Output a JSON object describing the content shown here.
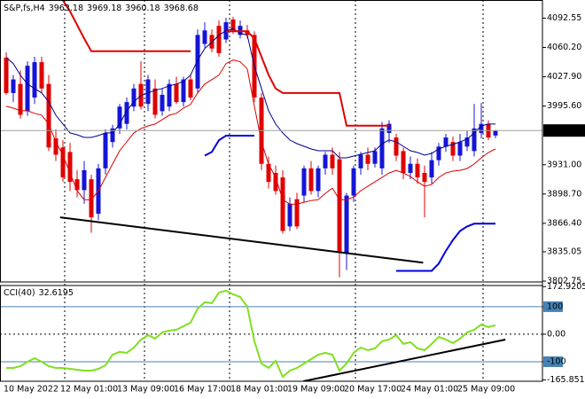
{
  "chart_data": [
    {
      "type": "candlestick",
      "title": "S&P,fs,H4",
      "categories": [
        "10 May 2022",
        null,
        null,
        null,
        null,
        null,
        null,
        null,
        "12 May 01:00",
        null,
        null,
        null,
        null,
        null,
        null,
        null,
        "13 May 09:00",
        null,
        null,
        null,
        null,
        null,
        null,
        null,
        "16 May 17:00",
        null,
        null,
        null,
        null,
        null,
        null,
        null,
        "18 May 01:00",
        null,
        null,
        null,
        null,
        null,
        null,
        null,
        "19 May 09:00",
        null,
        null,
        null,
        null,
        null,
        null,
        null,
        "20 May 17:00",
        null,
        null,
        null,
        null,
        null,
        null,
        null,
        "24 May 01:00",
        null,
        null,
        null,
        null,
        null,
        null,
        null,
        "25 May 09:00",
        null,
        null,
        null,
        null,
        null
      ],
      "open": [
        4049,
        4010,
        4020,
        3990,
        4005,
        4044,
        4020,
        3960,
        3950,
        3945,
        3915,
        3903,
        3915,
        3877,
        3927,
        3956,
        3971,
        3976,
        3995,
        4020,
        3998,
        4015,
        3990,
        3995,
        4020,
        4000,
        4025,
        4015,
        4064,
        4074,
        4084,
        4069,
        4091,
        4074,
        4079,
        4074,
        4005,
        3932,
        3922,
        3917,
        3863,
        3893,
        3897,
        3927,
        3902,
        3927,
        3942,
        3937,
        3834,
        3897,
        3927,
        3942,
        3932,
        3927,
        3966,
        3961,
        3946,
        3922,
        3932,
        3922,
        3917,
        3936,
        3951,
        3956,
        3941,
        3951,
        3946,
        3966,
        3976,
        3963.18
      ],
      "high": [
        4055,
        4030,
        4035,
        4045,
        4050,
        4050,
        4030,
        3970,
        3958,
        3955,
        3925,
        3935,
        3920,
        3932,
        3970,
        3975,
        3998,
        4005,
        4020,
        4045,
        4030,
        4025,
        4015,
        4025,
        4028,
        4028,
        4030,
        4080,
        4088,
        4080,
        4090,
        4093,
        4094,
        4090,
        4085,
        4078,
        4010,
        3940,
        3930,
        3925,
        3895,
        3900,
        3930,
        3935,
        3930,
        3945,
        3950,
        3945,
        3900,
        3930,
        3945,
        3950,
        3950,
        3978,
        3980,
        3965,
        3950,
        3940,
        3938,
        3930,
        3945,
        3955,
        3965,
        3962,
        3965,
        3968,
        3998,
        3999,
        3980,
        3969.18
      ],
      "low": [
        4008,
        4000,
        3982,
        3985,
        3998,
        4010,
        3946,
        3935,
        3912,
        3902,
        3895,
        3888,
        3856,
        3870,
        3920,
        3950,
        3965,
        3970,
        3990,
        3992,
        3990,
        3982,
        3985,
        3990,
        3998,
        3995,
        4002,
        4010,
        4060,
        4055,
        4050,
        4065,
        4075,
        4070,
        4070,
        4000,
        3925,
        3905,
        3898,
        3855,
        3858,
        3860,
        3890,
        3898,
        3895,
        3920,
        3920,
        3807,
        3815,
        3890,
        3920,
        3925,
        3928,
        3920,
        3955,
        3935,
        3915,
        3915,
        3910,
        3873,
        3910,
        3930,
        3945,
        3935,
        3935,
        3946,
        3940,
        3960,
        3958,
        3960.18
      ],
      "close": [
        4010,
        4025,
        3986,
        4040,
        4044,
        4015,
        3950,
        3942,
        3917,
        3912,
        3903,
        3925,
        3873,
        3927,
        3966,
        3971,
        3995,
        4000,
        4015,
        3995,
        4025,
        3986,
        4008,
        4020,
        4000,
        4025,
        4005,
        4074,
        4079,
        4059,
        4054,
        4088,
        4079,
        4084,
        4074,
        4005,
        3932,
        3912,
        3902,
        3858,
        3888,
        3863,
        3927,
        3902,
        3927,
        3942,
        3927,
        3834,
        3897,
        3927,
        3942,
        3932,
        3946,
        3971,
        3976,
        3941,
        3922,
        3932,
        3917,
        3912,
        3936,
        3951,
        3961,
        3941,
        3956,
        3961,
        3971,
        3976,
        3961,
        3968.68
      ],
      "up_color": "#1515d6",
      "down_color": "#e00000",
      "ylim": [
        3801.8,
        4112.5
      ],
      "yticks": [
        4092.55,
        {
          "value": 4060.2,
          "label": "4060.20"
        },
        {
          "value": 4027.9,
          "label": "4027.90"
        },
        {
          "value": 3995.6,
          "label": "3995.60"
        },
        {
          "value": 3931,
          "label": "3931.00"
        },
        {
          "value": 3898.7,
          "label": "3898.70"
        },
        {
          "value": 3866.4,
          "label": "3866.40"
        },
        3835.05,
        3802.75
      ],
      "price_line": true,
      "lines": [
        {
          "color": "#00008b",
          "width": 1,
          "values": [
            4049.3,
            4042.4,
            4029.7,
            4019.9,
            4015,
            4010.1,
            4000.3,
            3985.6,
            3975.8,
            3966,
            3964,
            3961.1,
            3961.1,
            3963.1,
            3966,
            3966,
            3975.8,
            3990.5,
            4000.3,
            4007.2,
            4010.1,
            4013,
            4015,
            4017.9,
            4019.9,
            4022.8,
            4029.7,
            4046.4,
            4059.1,
            4066,
            4073.8,
            4078.7,
            4080.7,
            4075.8,
            4073.8,
            4039.5,
            4015,
            3990.5,
            3975.8,
            3966,
            3958.2,
            3954.2,
            3951.3,
            3948.4,
            3946.4,
            3946.4,
            3946.4,
            3938.6,
            3938.6,
            3940.5,
            3942.5,
            3944.4,
            3946.4,
            3954.2,
            3958.2,
            3956.2,
            3951.3,
            3946.4,
            3944.4,
            3941.5,
            3943.5,
            3948.4,
            3951.3,
            3953.3,
            3956.2,
            3959.1,
            3966,
            3973.8,
            3975.8,
            3975.8
          ]
        },
        {
          "color": "#dd0000",
          "width": 1,
          "values": [
            3995.4,
            3993.4,
            3990.5,
            3990.5,
            3987.6,
            3985.6,
            3975.8,
            3956.2,
            3941.5,
            3921.9,
            3902.3,
            3892.5,
            3892.5,
            3902.3,
            3917,
            3931.7,
            3946.4,
            3956.2,
            3966,
            3970.9,
            3973.8,
            3975.8,
            3980.7,
            3985.6,
            3987.6,
            3993.4,
            3997.4,
            4010.1,
            4019.9,
            4024.8,
            4029.7,
            4042.4,
            4046.4,
            4044.4,
            4036.6,
            3995.4,
            3956.2,
            3931.7,
            3917,
            3892.5,
            3887.6,
            3887.6,
            3889.6,
            3891.5,
            3892.5,
            3899.4,
            3905.2,
            3892.5,
            3892.5,
            3895.4,
            3902.3,
            3907.2,
            3912.1,
            3917,
            3921.9,
            3924.8,
            3921.9,
            3918,
            3912.1,
            3907.2,
            3909.2,
            3917,
            3921.9,
            3923.9,
            3924.8,
            3926.8,
            3931.7,
            3938.6,
            3944.4,
            3948.4
          ]
        },
        {
          "color": "#e00000",
          "width": 2,
          "values": [
            null,
            null,
            null,
            null,
            null,
            null,
            null,
            null,
            4112,
            4100,
            4085,
            4070,
            4056,
            4056,
            4056,
            4056,
            4056,
            4056,
            4056,
            4056,
            4056,
            4056,
            4056,
            4056,
            4056,
            4056,
            4056,
            null,
            null,
            null,
            null,
            4078,
            4078,
            4078,
            4078,
            4070,
            4050,
            4030,
            4015,
            4010,
            4010,
            4010,
            4010,
            4010,
            4010,
            4010,
            4010,
            4010,
            3974,
            3974,
            3974,
            3974,
            3974,
            3974,
            3974,
            null,
            null,
            null,
            null,
            null,
            null,
            null,
            null,
            null,
            null,
            null,
            null,
            null,
            null,
            null
          ]
        },
        {
          "color": "#0000dd",
          "width": 2,
          "values": [
            null,
            null,
            null,
            null,
            null,
            null,
            null,
            null,
            null,
            null,
            null,
            null,
            null,
            null,
            null,
            null,
            null,
            null,
            null,
            null,
            null,
            null,
            null,
            null,
            null,
            null,
            null,
            null,
            3941,
            3945,
            3958,
            3963,
            3963,
            3963,
            3963,
            3963,
            null,
            null,
            null,
            null,
            null,
            null,
            null,
            null,
            null,
            null,
            null,
            null,
            null,
            null,
            null,
            null,
            null,
            null,
            null,
            3814,
            3814,
            3814,
            3814,
            3814,
            3814,
            3822,
            3836,
            3848,
            3858,
            3863,
            3866,
            3866,
            3866,
            3866
          ]
        }
      ],
      "trendline": {
        "color": "#000000",
        "x": [
          7.6,
          58.8
        ],
        "values": [
          3873,
          3823
        ]
      }
    },
    {
      "type": "line",
      "title": "CCI(40)",
      "color": "#7fe020",
      "values": [
        -122.6,
        -122.6,
        -116.1,
        -100,
        -87.1,
        -100,
        -116.1,
        -122.6,
        -122.6,
        -125.8,
        -129,
        -132.3,
        -132.3,
        -125.8,
        -112.9,
        -74.2,
        -64.5,
        -67.7,
        -48.4,
        -19.4,
        -3.2,
        -16.1,
        6.5,
        12.9,
        16.1,
        29,
        41.9,
        93.5,
        116.1,
        112.9,
        151.6,
        158.1,
        145.2,
        135.5,
        100,
        -25.8,
        -106.5,
        -122.6,
        -96.8,
        -154.8,
        -132.3,
        -122.6,
        -106.5,
        -90.3,
        -74.2,
        -67.7,
        -74.2,
        -132.3,
        -106.5,
        -67.7,
        -48.4,
        -58.1,
        -51.6,
        -25.8,
        -19.4,
        -3.2,
        -35.5,
        -29,
        -51.6,
        -58.1,
        -35.5,
        -9.7,
        -19.4,
        -32.3,
        -16.1,
        6.5,
        16.1,
        35.5,
        25.8,
        32.6195
      ],
      "ylim": [
        -171,
        177
      ],
      "yticks": [
        172.9205,
        100,
        {
          "value": 0,
          "label": "0.00"
        },
        -100,
        -165.8517
      ],
      "levels": [
        100,
        -100
      ],
      "level_color": "#4682b4",
      "zero_line": true,
      "trendline": {
        "color": "#000000",
        "x": [
          41.9,
          70.4
        ],
        "values": [
          -171,
          -19.4
        ]
      }
    }
  ]
}
